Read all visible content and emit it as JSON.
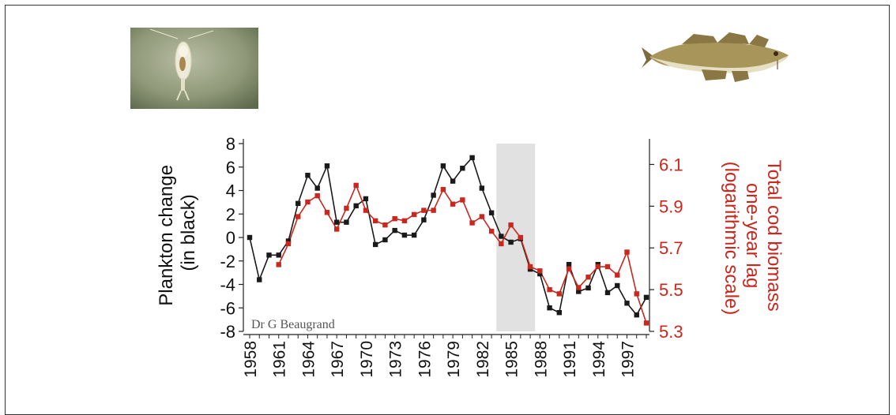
{
  "images": {
    "left": "plankton-photo",
    "right": "cod-fish-illustration"
  },
  "credit": "Dr G Beaugrand",
  "colors": {
    "plankton": "#1a1a1a",
    "cod": "#c8281e",
    "shade": "#e1e1e1"
  },
  "chart_data": {
    "type": "line",
    "title": "",
    "xlabel": "",
    "ylabel_left": [
      "Plankton change",
      "(in black)"
    ],
    "ylabel_right": [
      "Total cod biomass",
      "one-year lag",
      "(logarithmic scale)"
    ],
    "x_tick_labels": [
      "1958",
      "1961",
      "1964",
      "1967",
      "1970",
      "1973",
      "1976",
      "1979",
      "1982",
      "1985",
      "1988",
      "1991",
      "1994",
      "1997"
    ],
    "x_range": [
      1958,
      1999
    ],
    "y_left": {
      "range": [
        -8,
        8
      ],
      "ticks": [
        "8",
        "6",
        "4",
        "2",
        "0",
        "-2",
        "-4",
        "-6",
        "-8"
      ]
    },
    "y_right": {
      "range": [
        5.3,
        6.2
      ],
      "ticks": [
        "6.1",
        "5.9",
        "5.7",
        "5.5",
        "5.3"
      ]
    },
    "shaded_region": [
      1983.5,
      1987.5
    ],
    "grid": false,
    "series": [
      {
        "name": "Plankton change",
        "axis": "left",
        "x": [
          1958,
          1959,
          1960,
          1961,
          1962,
          1963,
          1964,
          1965,
          1966,
          1967,
          1968,
          1969,
          1970,
          1971,
          1972,
          1973,
          1974,
          1975,
          1976,
          1977,
          1978,
          1979,
          1980,
          1981,
          1982,
          1983,
          1984,
          1985,
          1986,
          1987,
          1988,
          1989,
          1990,
          1991,
          1992,
          1993,
          1994,
          1995,
          1996,
          1997,
          1998,
          1999
        ],
        "y": [
          0,
          -3.6,
          -1.5,
          -1.5,
          -0.3,
          2.9,
          5.3,
          4.2,
          6.1,
          1.3,
          1.3,
          2.7,
          3.3,
          -0.6,
          -0.2,
          0.6,
          0.2,
          0.2,
          1.5,
          3.6,
          6.1,
          4.8,
          5.9,
          6.8,
          4.2,
          2.1,
          0.1,
          -0.4,
          -0.1,
          -2.7,
          -3.1,
          -6,
          -6.4,
          -2.3,
          -4.6,
          -4.3,
          -2.3,
          -4.7,
          -4.1,
          -5.6,
          -6.6,
          -5.1
        ]
      },
      {
        "name": "Total cod biomass (one-year lag)",
        "axis": "right",
        "x": [
          1961,
          1962,
          1963,
          1964,
          1965,
          1966,
          1967,
          1968,
          1969,
          1970,
          1971,
          1972,
          1973,
          1974,
          1975,
          1976,
          1977,
          1978,
          1979,
          1980,
          1981,
          1982,
          1983,
          1984,
          1985,
          1986,
          1987,
          1988,
          1989,
          1990,
          1991,
          1992,
          1993,
          1994,
          1995,
          1996,
          1997,
          1998,
          1999
        ],
        "y": [
          5.62,
          5.72,
          5.85,
          5.92,
          5.95,
          5.87,
          5.79,
          5.89,
          6.0,
          5.88,
          5.83,
          5.81,
          5.84,
          5.83,
          5.86,
          5.88,
          5.88,
          5.98,
          5.91,
          5.93,
          5.82,
          5.85,
          5.78,
          5.72,
          5.81,
          5.75,
          5.61,
          5.59,
          5.5,
          5.48,
          5.6,
          5.51,
          5.56,
          5.61,
          5.61,
          5.57,
          5.68,
          5.48,
          5.34
        ]
      }
    ]
  }
}
